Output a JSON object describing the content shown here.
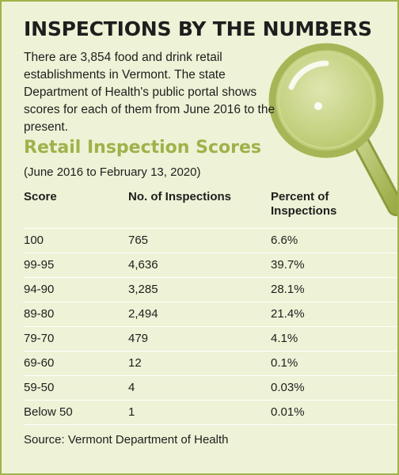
{
  "headline": "INSPECTIONS BY THE NUMBERS",
  "intro": "There are 3,854 food and drink retail establishments in Vermont. The state Department of Health's public portal shows scores for each of them from June 2016 to the present.",
  "table_title": "Retail Inspection Scores",
  "date_range": "(June 2016 to February 13, 2020)",
  "columns": {
    "score": "Score",
    "count": "No. of Inspections",
    "percent_line1": "Percent of",
    "percent_line2": "Inspections"
  },
  "rows": [
    {
      "score": "100",
      "count": "765",
      "percent": "6.6%"
    },
    {
      "score": "99-95",
      "count": "4,636",
      "percent": "39.7%"
    },
    {
      "score": "94-90",
      "count": "3,285",
      "percent": "28.1%"
    },
    {
      "score": "89-80",
      "count": "2,494",
      "percent": "21.4%"
    },
    {
      "score": "79-70",
      "count": "479",
      "percent": "4.1%"
    },
    {
      "score": "69-60",
      "count": "12",
      "percent": "0.1%"
    },
    {
      "score": "59-50",
      "count": "4",
      "percent": "0.03%"
    },
    {
      "score": "Below 50",
      "count": "1",
      "percent": "0.01%"
    }
  ],
  "source": "Source: Vermont Department of Health",
  "colors": {
    "background": "#eef2d6",
    "accent": "#9fb24a",
    "text": "#1e1e1e"
  },
  "decoration": "magnifying-glass-icon"
}
